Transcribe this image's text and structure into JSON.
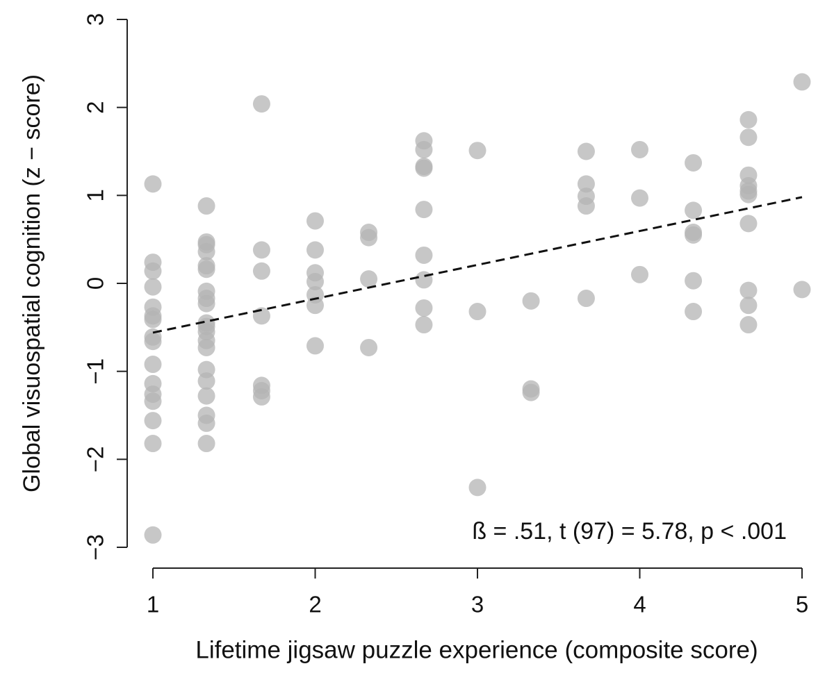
{
  "chart_data": {
    "type": "scatter",
    "xlabel": "Lifetime jigsaw puzzle experience (composite score)",
    "ylabel": "Global visuospatial cognition  (z − score)",
    "annotation": "ß  = .51, t (97) = 5.78,  p < .001",
    "xlim": [
      1,
      5
    ],
    "ylim": [
      -3,
      3
    ],
    "xticks": [
      1,
      2,
      3,
      4,
      5
    ],
    "yticks": [
      {
        "value": -3,
        "label": "−3"
      },
      {
        "value": -2,
        "label": "−2"
      },
      {
        "value": -1,
        "label": "−1"
      },
      0,
      1,
      2,
      3
    ],
    "color": "#b4b4b4",
    "trend_line": {
      "x": [
        1,
        5
      ],
      "y": [
        -0.56,
        0.98
      ]
    },
    "series": [
      {
        "x": [
          1,
          1,
          1,
          1,
          1,
          1,
          1,
          1,
          1,
          1,
          1,
          1,
          1,
          1,
          1,
          1,
          1.33,
          1.33,
          1.33,
          1.33,
          1.33,
          1.33,
          1.33,
          1.33,
          1.33,
          1.33,
          1.33,
          1.33,
          1.33,
          1.33,
          1.33,
          1.33,
          1.33,
          1.33,
          1.33,
          1.33,
          1.67,
          1.67,
          1.67,
          1.67,
          1.67,
          1.67,
          1.67,
          2,
          2,
          2,
          2,
          2,
          2,
          2,
          2.33,
          2.33,
          2.33,
          2.33,
          2.67,
          2.67,
          2.67,
          2.67,
          2.67,
          2.67,
          2.67,
          2.67,
          2.67,
          3,
          3,
          3,
          3.33,
          3.33,
          3.33,
          3.67,
          3.67,
          3.67,
          3.67,
          3.67,
          4,
          4,
          4,
          4.33,
          4.33,
          4.33,
          4.33,
          4.33,
          4.33,
          4.67,
          4.67,
          4.67,
          4.67,
          4.67,
          4.67,
          4.67,
          4.67,
          4.67,
          4.67,
          5,
          5
        ],
        "y": [
          1.13,
          0.24,
          0.14,
          -0.04,
          -0.27,
          -0.37,
          -0.41,
          -0.61,
          -0.66,
          -0.92,
          -1.14,
          -1.26,
          -1.34,
          -1.56,
          -1.82,
          -2.86,
          0.88,
          0.47,
          0.44,
          0.36,
          0.2,
          0.16,
          -0.09,
          -0.17,
          -0.23,
          -0.45,
          -0.49,
          -0.55,
          -0.65,
          -0.73,
          -0.98,
          -1.11,
          -1.28,
          -1.5,
          -1.59,
          -1.82,
          2.04,
          0.38,
          0.14,
          -0.37,
          -1.16,
          -1.22,
          -1.29,
          0.71,
          0.38,
          0.12,
          0.02,
          -0.13,
          -0.25,
          -0.71,
          0.58,
          0.52,
          0.05,
          -0.73,
          1.62,
          1.52,
          1.33,
          1.31,
          0.84,
          0.32,
          0.04,
          -0.28,
          -0.47,
          1.51,
          -0.32,
          -2.32,
          -0.2,
          -1.2,
          -1.24,
          1.5,
          1.13,
          0.99,
          0.88,
          -0.17,
          1.52,
          0.97,
          0.1,
          1.37,
          0.83,
          0.58,
          0.55,
          0.03,
          -0.32,
          1.86,
          1.66,
          1.23,
          1.11,
          1.05,
          1.01,
          0.68,
          -0.08,
          -0.25,
          -0.47,
          2.29,
          -0.07
        ]
      }
    ]
  }
}
